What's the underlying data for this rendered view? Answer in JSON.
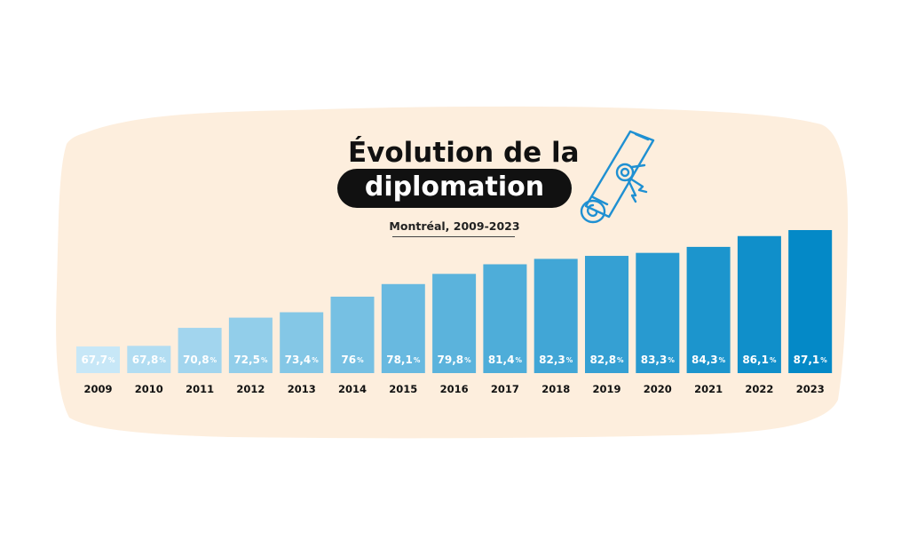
{
  "title_line1": "Évolution de la",
  "title_line2": "diplomation",
  "subtitle": "Montréal, 2009-2023",
  "colors": {
    "background_blob": "#fdeedd",
    "title_pill": "#111111",
    "icon_stroke": "#1f90d2",
    "bar_light": "#c7e7f7",
    "bar_dark": "#0489c7"
  },
  "chart_data": {
    "type": "bar",
    "categories": [
      "2009",
      "2010",
      "2011",
      "2012",
      "2013",
      "2014",
      "2015",
      "2016",
      "2017",
      "2018",
      "2019",
      "2020",
      "2021",
      "2022",
      "2023"
    ],
    "values": [
      67.7,
      67.8,
      70.8,
      72.5,
      73.4,
      76,
      78.1,
      79.8,
      81.4,
      82.3,
      82.8,
      83.3,
      84.3,
      86.1,
      87.1
    ],
    "labels": [
      "67,7",
      "67,8",
      "70,8",
      "72,5",
      "73,4",
      "76",
      "78,1",
      "79,8",
      "81,4",
      "82,3",
      "82,8",
      "83,3",
      "84,3",
      "86,1",
      "87,1"
    ],
    "unit": "%",
    "title": "Évolution de la diplomation",
    "subtitle": "Montréal, 2009-2023",
    "xlabel": "",
    "ylabel": "",
    "grid": false,
    "legend": "none"
  }
}
